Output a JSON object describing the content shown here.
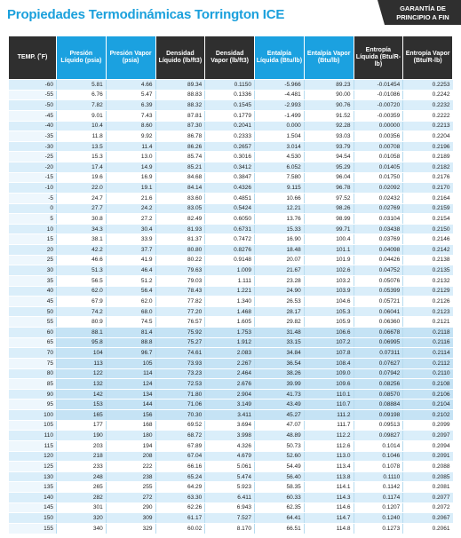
{
  "title": "Propiedades Termodinámicas Torrington ICE",
  "badge": {
    "line1": "GARANTÍA DE",
    "line2": "PRINCIPIO A FIN"
  },
  "headers": [
    "TEMP. (˚F)",
    "Presión Líquido (psia)",
    "Presión Vapor (psia)",
    "Densidad Líquido (lb/ft3)",
    "Densidad Vapor (lb/ft3)",
    "Entalpía Líquida (Btu/lb)",
    "Entalpía Vapor (Btu/lb)",
    "Entropía Líquida (Btu/R-lb)",
    "Entropía Vapor (Btu/R-lb)"
  ],
  "rows": [
    [
      "-60",
      "5.81",
      "4.66",
      "89.34",
      "0.1150",
      "-5.966",
      "89.23",
      "-0.01454",
      "0.2253"
    ],
    [
      "-55",
      "6.76",
      "5.47",
      "88.83",
      "0.1336",
      "-4.481",
      "90.00",
      "-0.01086",
      "0.2242"
    ],
    [
      "-50",
      "7.82",
      "6.39",
      "88.32",
      "0.1545",
      "-2.993",
      "90.76",
      "-0.00720",
      "0.2232"
    ],
    [
      "-45",
      "9.01",
      "7.43",
      "87.81",
      "0.1779",
      "-1.499",
      "91.52",
      "-0.00359",
      "0.2222"
    ],
    [
      "-40",
      "10.4",
      "8.60",
      "87.30",
      "0.2041",
      "0.000",
      "92.28",
      "0.00000",
      "0.2213"
    ],
    [
      "-35",
      "11.8",
      "9.92",
      "86.78",
      "0.2333",
      "1.504",
      "93.03",
      "0.00356",
      "0.2204"
    ],
    [
      "-30",
      "13.5",
      "11.4",
      "86.26",
      "0.2657",
      "3.014",
      "93.79",
      "0.00708",
      "0.2196"
    ],
    [
      "-25",
      "15.3",
      "13.0",
      "85.74",
      "0.3016",
      "4.530",
      "94.54",
      "0.01058",
      "0.2189"
    ],
    [
      "-20",
      "17.4",
      "14.9",
      "85.21",
      "0.3412",
      "6.052",
      "95.29",
      "0.01405",
      "0.2182"
    ],
    [
      "-15",
      "19.6",
      "16.9",
      "84.68",
      "0.3847",
      "7.580",
      "96.04",
      "0.01750",
      "0.2176"
    ],
    [
      "-10",
      "22.0",
      "19.1",
      "84.14",
      "0.4326",
      "9.115",
      "96.78",
      "0.02092",
      "0.2170"
    ],
    [
      "-5",
      "24.7",
      "21.6",
      "83.60",
      "0.4851",
      "10.66",
      "97.52",
      "0.02432",
      "0.2164"
    ],
    [
      "0",
      "27.7",
      "24.2",
      "83.05",
      "0.5424",
      "12.21",
      "98.26",
      "0.02769",
      "0.2159"
    ],
    [
      "5",
      "30.8",
      "27.2",
      "82.49",
      "0.6050",
      "13.76",
      "98.99",
      "0.03104",
      "0.2154"
    ],
    [
      "10",
      "34.3",
      "30.4",
      "81.93",
      "0.6731",
      "15.33",
      "99.71",
      "0.03438",
      "0.2150"
    ],
    [
      "15",
      "38.1",
      "33.9",
      "81.37",
      "0.7472",
      "16.90",
      "100.4",
      "0.03769",
      "0.2146"
    ],
    [
      "20",
      "42.2",
      "37.7",
      "80.80",
      "0.8276",
      "18.48",
      "101.1",
      "0.04098",
      "0.2142"
    ],
    [
      "25",
      "46.6",
      "41.9",
      "80.22",
      "0.9148",
      "20.07",
      "101.9",
      "0.04426",
      "0.2138"
    ],
    [
      "30",
      "51.3",
      "46.4",
      "79.63",
      "1.009",
      "21.67",
      "102.6",
      "0.04752",
      "0.2135"
    ],
    [
      "35",
      "56.5",
      "51.2",
      "79.03",
      "1.111",
      "23.28",
      "103.2",
      "0.05076",
      "0.2132"
    ],
    [
      "40",
      "62.0",
      "56.4",
      "78.43",
      "1.221",
      "24.90",
      "103.9",
      "0.05399",
      "0.2129"
    ],
    [
      "45",
      "67.9",
      "62.0",
      "77.82",
      "1.340",
      "26.53",
      "104.6",
      "0.05721",
      "0.2126"
    ],
    [
      "50",
      "74.2",
      "68.0",
      "77.20",
      "1.468",
      "28.17",
      "105.3",
      "0.06041",
      "0.2123"
    ],
    [
      "55",
      "80.9",
      "74.5",
      "76.57",
      "1.605",
      "29.82",
      "105.9",
      "0.06360",
      "0.2121"
    ],
    [
      "60",
      "88.1",
      "81.4",
      "75.92",
      "1.753",
      "31.48",
      "106.6",
      "0.06678",
      "0.2118"
    ],
    [
      "65",
      "95.8",
      "88.8",
      "75.27",
      "1.912",
      "33.15",
      "107.2",
      "0.06995",
      "0.2116"
    ],
    [
      "70",
      "104",
      "96.7",
      "74.61",
      "2.083",
      "34.84",
      "107.8",
      "0.07311",
      "0.2114"
    ],
    [
      "75",
      "113",
      "105",
      "73.93",
      "2.267",
      "36.54",
      "108.4",
      "0.07627",
      "0.2112"
    ],
    [
      "80",
      "122",
      "114",
      "73.23",
      "2.464",
      "38.26",
      "109.0",
      "0.07942",
      "0.2110"
    ],
    [
      "85",
      "132",
      "124",
      "72.53",
      "2.676",
      "39.99",
      "109.6",
      "0.08256",
      "0.2108"
    ],
    [
      "90",
      "142",
      "134",
      "71.80",
      "2.904",
      "41.73",
      "110.1",
      "0.08570",
      "0.2106"
    ],
    [
      "95",
      "153",
      "144",
      "71.06",
      "3.149",
      "43.49",
      "110.7",
      "0.08884",
      "0.2104"
    ],
    [
      "100",
      "165",
      "156",
      "70.30",
      "3.411",
      "45.27",
      "111.2",
      "0.09198",
      "0.2102"
    ],
    [
      "105",
      "177",
      "168",
      "69.52",
      "3.694",
      "47.07",
      "111.7",
      "0.09513",
      "0.2099"
    ],
    [
      "110",
      "190",
      "180",
      "68.72",
      "3.998",
      "48.89",
      "112.2",
      "0.09827",
      "0.2097"
    ],
    [
      "115",
      "203",
      "194",
      "67.89",
      "4.326",
      "50.73",
      "112.6",
      "0.1014",
      "0.2094"
    ],
    [
      "120",
      "218",
      "208",
      "67.04",
      "4.679",
      "52.60",
      "113.0",
      "0.1046",
      "0.2091"
    ],
    [
      "125",
      "233",
      "222",
      "66.16",
      "5.061",
      "54.49",
      "113.4",
      "0.1078",
      "0.2088"
    ],
    [
      "130",
      "248",
      "238",
      "65.24",
      "5.474",
      "56.40",
      "113.8",
      "0.1110",
      "0.2085"
    ],
    [
      "135",
      "265",
      "255",
      "64.29",
      "5.923",
      "58.35",
      "114.1",
      "0.1142",
      "0.2081"
    ],
    [
      "140",
      "282",
      "272",
      "63.30",
      "6.411",
      "60.33",
      "114.3",
      "0.1174",
      "0.2077"
    ],
    [
      "145",
      "301",
      "290",
      "62.26",
      "6.943",
      "62.35",
      "114.6",
      "0.1207",
      "0.2072"
    ],
    [
      "150",
      "320",
      "309",
      "61.17",
      "7.527",
      "64.41",
      "114.7",
      "0.1240",
      "0.2067"
    ],
    [
      "155",
      "340",
      "329",
      "60.02",
      "8.170",
      "66.51",
      "114.8",
      "0.1273",
      "0.2061"
    ]
  ],
  "colors": {
    "accent": "#1ba1e0",
    "header_dark": "#2f2f2f",
    "row_tint": "#daeefa"
  }
}
